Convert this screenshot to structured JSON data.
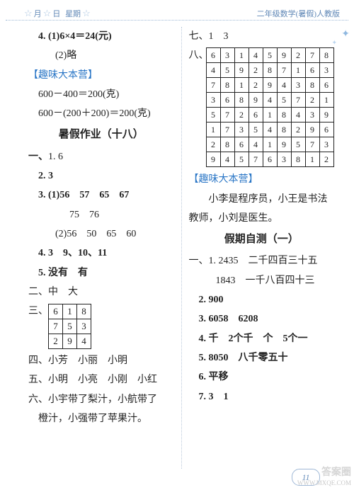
{
  "header": {
    "left_parts": [
      "月",
      "日",
      "星期"
    ],
    "right": "二年级数学(暑假)人教版",
    "star_glyph": "☆"
  },
  "left": {
    "l1": "4. (1)6×4＝24(元)",
    "l2": "(2)略",
    "fun1": "【趣味大本营】",
    "l3": "600－400＝200(克)",
    "l4": "600－(200＋200)＝200(克)",
    "title1": "暑假作业（十八）",
    "s1_1": {
      "label": "一、",
      "a": "1. 6"
    },
    "s1_2": "2. 3",
    "s1_3": "3. (1)56　57　65　67",
    "s1_3b": "75　76",
    "s1_3c": "(2)56　50　65　60",
    "s1_4": "4. 3　9、10、11",
    "s1_5": "5. 没有　有",
    "s2": "二、中　大",
    "s3_label": "三、",
    "grid3": [
      [
        "6",
        "1",
        "8"
      ],
      [
        "7",
        "5",
        "3"
      ],
      [
        "2",
        "9",
        "4"
      ]
    ],
    "s4": "四、小芳　小丽　小明",
    "s5": "五、小明　小亮　小刚　小红",
    "s6a": "六、小宇带了梨汁，小航带了",
    "s6b": "橙汁，小强带了苹果汁。"
  },
  "right": {
    "r1": "七、1　3",
    "r2_label": "八、",
    "grid8": [
      [
        "6",
        "3",
        "1",
        "4",
        "5",
        "9",
        "2",
        "7",
        "8"
      ],
      [
        "4",
        "5",
        "9",
        "2",
        "8",
        "7",
        "1",
        "6",
        "3"
      ],
      [
        "7",
        "8",
        "1",
        "2",
        "9",
        "4",
        "3",
        "8",
        "6"
      ],
      [
        "3",
        "6",
        "8",
        "9",
        "4",
        "5",
        "7",
        "2",
        "1"
      ],
      [
        "5",
        "7",
        "2",
        "6",
        "1",
        "8",
        "4",
        "3",
        "9"
      ],
      [
        "1",
        "7",
        "3",
        "5",
        "4",
        "8",
        "2",
        "9",
        "6"
      ],
      [
        "2",
        "8",
        "6",
        "4",
        "1",
        "9",
        "5",
        "7",
        "3"
      ],
      [
        "9",
        "4",
        "5",
        "7",
        "6",
        "3",
        "8",
        "1",
        "2"
      ]
    ],
    "fun2": "【趣味大本营】",
    "story1": "　　小李是程序员，小王是书法",
    "story2": "教师，小刘是医生。",
    "title2": "假期自测（一）",
    "a1a": "一、1. 2435　二千四百三十五",
    "a1b": "1843　一千八百四十三",
    "a2": "2. 900",
    "a3": "3. 6058　6208",
    "a4": "4. 千　2个千　个　5个一",
    "a5": "5. 8050　八千零五十",
    "a6": "6. 平移",
    "a7": "7. 3　1"
  },
  "page": "11",
  "watermark": {
    "zh": "答案圈",
    "url": "WWW.MXQE.COM"
  }
}
